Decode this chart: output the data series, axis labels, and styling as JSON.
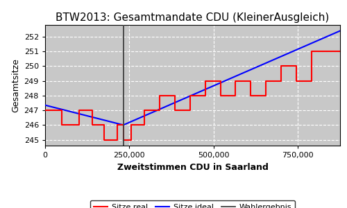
{
  "title": "BTW2013: Gesamtmandate CDU (KleinerAusgleich)",
  "xlabel": "Zweitstimmen CDU in Saarland",
  "ylabel": "Gesamtsitze",
  "background_color": "#c8c8c8",
  "grid_color": "white",
  "wahlergebnis_x": 232000,
  "xlim": [
    0,
    875000
  ],
  "ylim": [
    244.6,
    252.8
  ],
  "yticks": [
    245,
    246,
    247,
    248,
    249,
    250,
    251,
    252
  ],
  "xticks": [
    0,
    250000,
    500000,
    750000
  ],
  "xticklabels": [
    "0",
    "250,000",
    "500,000",
    "750,000"
  ],
  "ideal_line": {
    "x": [
      0,
      232000,
      875000
    ],
    "y": [
      247.35,
      246.0,
      252.4
    ],
    "color": "blue",
    "linewidth": 1.5
  },
  "real_steps": {
    "x": [
      0,
      50000,
      50000,
      100000,
      100000,
      140000,
      140000,
      175000,
      175000,
      215000,
      215000,
      232000,
      232000,
      255000,
      255000,
      295000,
      295000,
      340000,
      340000,
      385000,
      385000,
      430000,
      430000,
      475000,
      475000,
      520000,
      520000,
      565000,
      565000,
      610000,
      610000,
      655000,
      655000,
      700000,
      700000,
      745000,
      745000,
      790000,
      790000,
      875000
    ],
    "y": [
      247,
      247,
      246,
      246,
      247,
      247,
      246,
      246,
      245,
      245,
      246,
      246,
      245,
      245,
      246,
      246,
      247,
      247,
      248,
      248,
      247,
      247,
      248,
      248,
      249,
      249,
      248,
      248,
      249,
      249,
      248,
      248,
      249,
      249,
      250,
      250,
      249,
      249,
      251,
      251
    ],
    "color": "red",
    "linewidth": 1.5
  },
  "legend_labels": [
    "Sitze real",
    "Sitze ideal",
    "Wahlergebnis"
  ],
  "legend_colors": [
    "red",
    "blue",
    "#404040"
  ],
  "title_fontsize": 11,
  "axis_fontsize": 8,
  "label_fontsize": 9,
  "tick_fontsize": 8
}
